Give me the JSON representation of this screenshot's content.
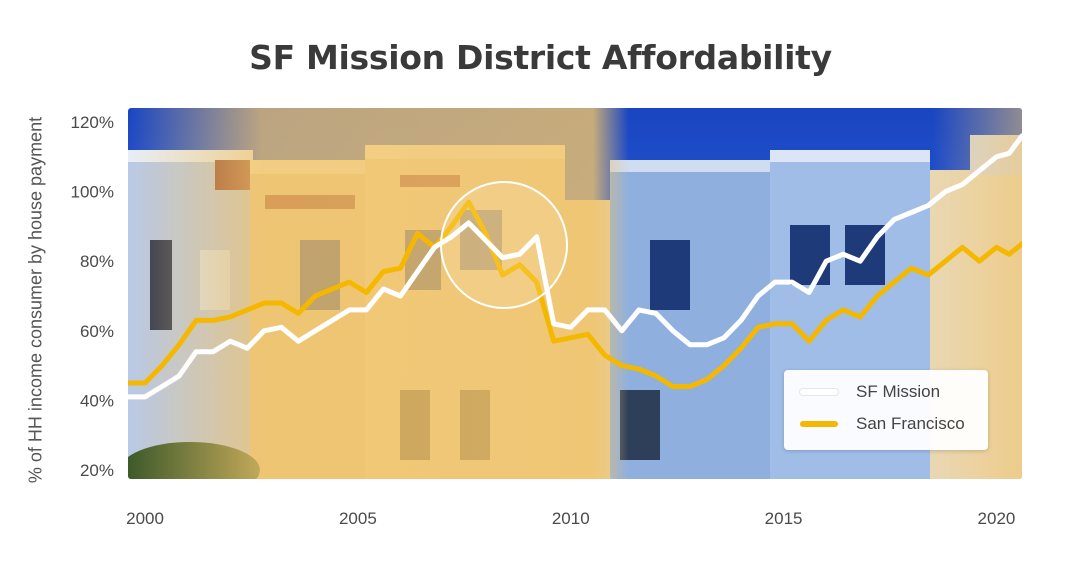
{
  "colors": {
    "sf_mission": "#ffffff",
    "san_francisco": "#f5b800",
    "sky": "#1f4fc9"
  },
  "chart_data": {
    "type": "line",
    "title": "SF Mission District Affordability",
    "xlabel": "",
    "ylabel": "% of HH income consumer by house payment",
    "xlim": [
      1999.6,
      2020.6
    ],
    "ylim": [
      20,
      120
    ],
    "x_ticks": [
      2000,
      2005,
      2010,
      2015,
      2020
    ],
    "y_ticks": [
      20,
      40,
      60,
      80,
      100,
      120
    ],
    "y_tick_labels": [
      "20%",
      "40%",
      "60%",
      "80%",
      "100%",
      "120%"
    ],
    "legend_position": "bottom-right",
    "grid": false,
    "background": "photo of Victorian houses",
    "series": [
      {
        "name": "SF Mission",
        "color": "#ffffff",
        "x": [
          1999.6,
          2000.0,
          2000.4,
          2000.8,
          2001.2,
          2001.6,
          2002.0,
          2002.4,
          2002.8,
          2003.2,
          2003.6,
          2004.0,
          2004.4,
          2004.8,
          2005.2,
          2005.6,
          2006.0,
          2006.4,
          2006.8,
          2007.2,
          2007.6,
          2008.0,
          2008.4,
          2008.8,
          2009.2,
          2009.6,
          2010.0,
          2010.4,
          2010.8,
          2011.2,
          2011.6,
          2012.0,
          2012.4,
          2012.8,
          2013.2,
          2013.6,
          2014.0,
          2014.4,
          2014.8,
          2015.2,
          2015.6,
          2016.0,
          2016.4,
          2016.8,
          2017.2,
          2017.6,
          2018.0,
          2018.4,
          2018.8,
          2019.2,
          2019.6,
          2020.0,
          2020.3,
          2020.6
        ],
        "y": [
          41,
          41,
          44,
          47,
          54,
          54,
          57,
          55,
          60,
          61,
          57,
          60,
          63,
          66,
          66,
          72,
          70,
          77,
          84,
          87,
          91,
          86,
          81,
          82,
          87,
          62,
          61,
          66,
          66,
          60,
          66,
          65,
          60,
          56,
          56,
          58,
          63,
          70,
          74,
          74,
          71,
          80,
          82,
          80,
          87,
          92,
          94,
          96,
          100,
          102,
          106,
          110,
          111,
          116
        ]
      },
      {
        "name": "San Francisco",
        "color": "#f5b800",
        "x": [
          1999.6,
          2000.0,
          2000.4,
          2000.8,
          2001.2,
          2001.6,
          2002.0,
          2002.4,
          2002.8,
          2003.2,
          2003.6,
          2004.0,
          2004.4,
          2004.8,
          2005.2,
          2005.6,
          2006.0,
          2006.4,
          2006.8,
          2007.2,
          2007.6,
          2008.0,
          2008.4,
          2008.8,
          2009.2,
          2009.6,
          2010.0,
          2010.4,
          2010.8,
          2011.2,
          2011.6,
          2012.0,
          2012.4,
          2012.8,
          2013.2,
          2013.6,
          2014.0,
          2014.4,
          2014.8,
          2015.2,
          2015.6,
          2016.0,
          2016.4,
          2016.8,
          2017.2,
          2017.6,
          2018.0,
          2018.4,
          2018.8,
          2019.2,
          2019.6,
          2020.0,
          2020.3,
          2020.6
        ],
        "y": [
          45,
          45,
          50,
          56,
          63,
          63,
          64,
          66,
          68,
          68,
          65,
          70,
          72,
          74,
          71,
          77,
          78,
          88,
          84,
          90,
          97,
          88,
          76,
          79,
          74,
          57,
          58,
          59,
          53,
          50,
          49,
          47,
          44,
          44,
          46,
          50,
          55,
          61,
          62,
          62,
          57,
          63,
          66,
          64,
          70,
          74,
          78,
          76,
          80,
          84,
          80,
          84,
          82,
          85
        ]
      }
    ]
  }
}
